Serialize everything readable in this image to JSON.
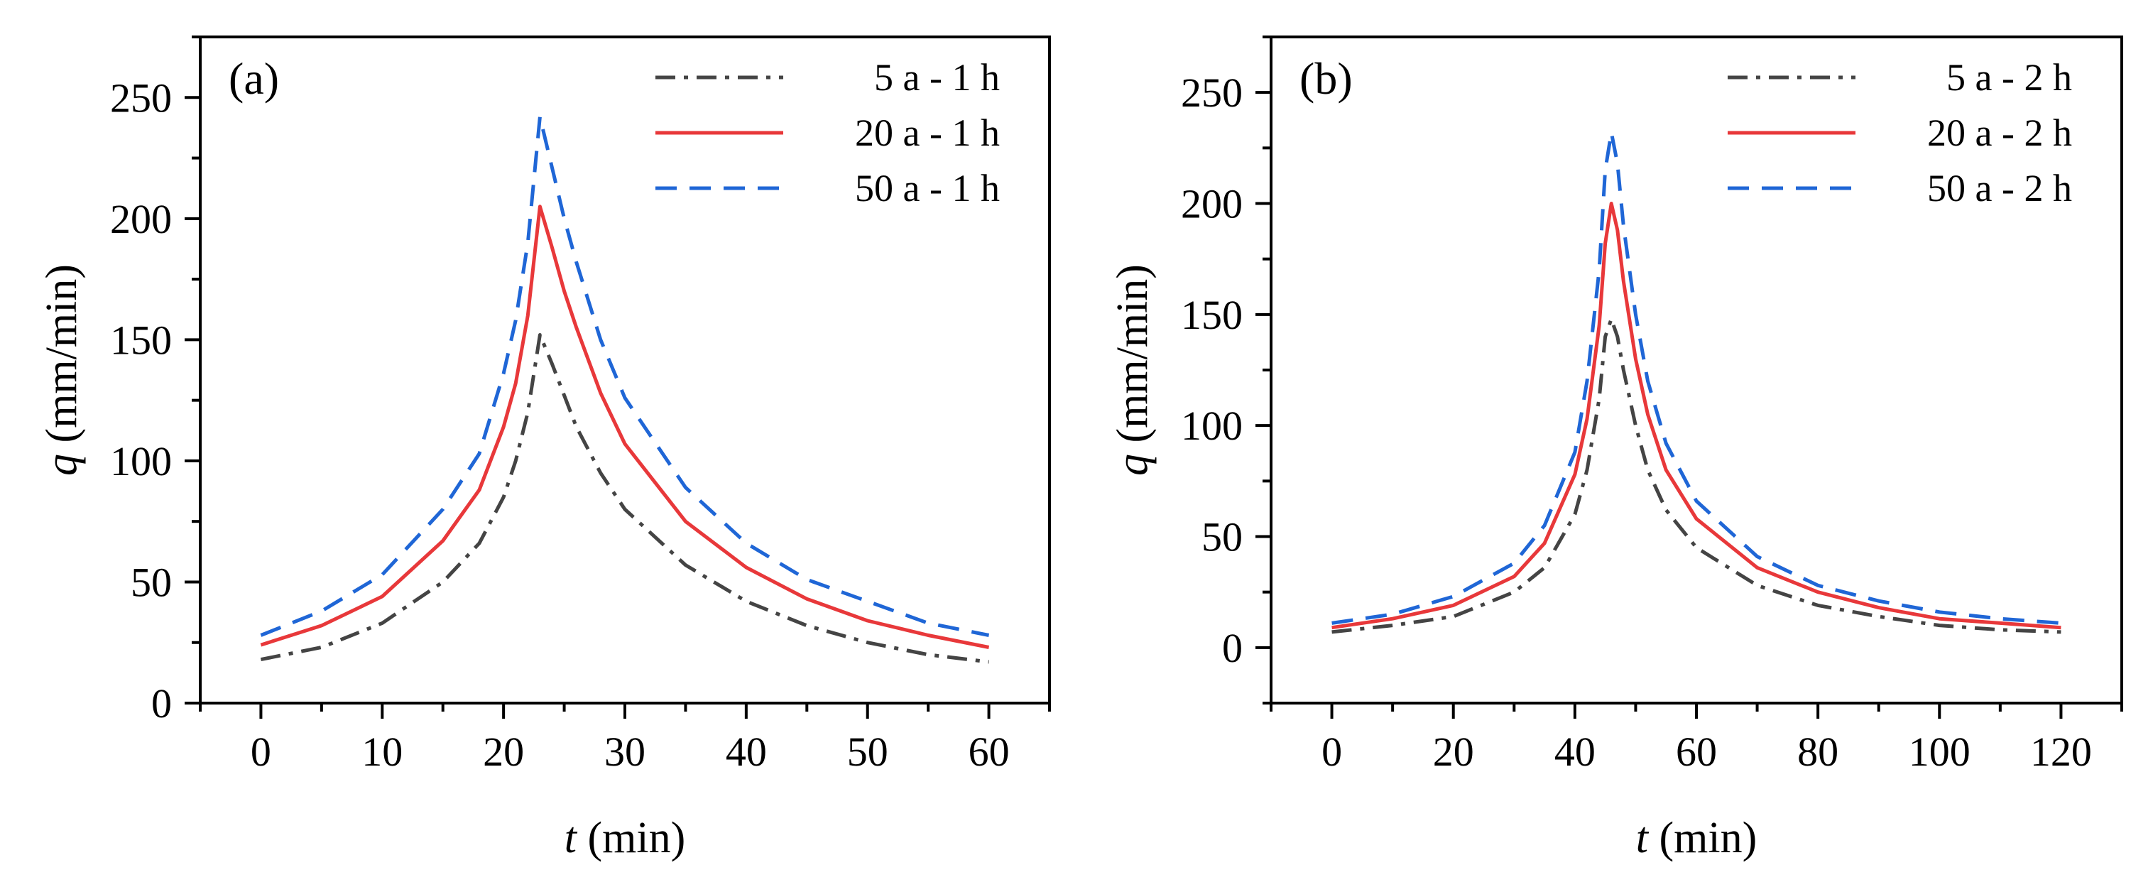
{
  "figure": {
    "background": "#ffffff"
  },
  "chart_data": [
    {
      "type": "line",
      "panel_label": "(a)",
      "xlabel_var": "t",
      "xlabel_unit": " (min)",
      "ylabel_var": "q",
      "ylabel_unit": " (mm/min)",
      "xlim": [
        -5,
        65
      ],
      "ylim": [
        0,
        275
      ],
      "xticks": [
        0,
        10,
        20,
        30,
        40,
        50,
        60
      ],
      "yticks": [
        0,
        50,
        100,
        150,
        200,
        250
      ],
      "legend_position": "top-right",
      "series": [
        {
          "name": "5 a - 1 h",
          "color": "#444444",
          "style": "dashdot",
          "x": [
            0,
            5,
            10,
            15,
            18,
            20,
            21,
            22,
            23,
            24,
            25,
            26,
            28,
            30,
            35,
            40,
            45,
            50,
            55,
            60
          ],
          "y": [
            18,
            23,
            33,
            50,
            66,
            85,
            100,
            120,
            152,
            140,
            127,
            114,
            95,
            80,
            57,
            42,
            32,
            25,
            20,
            17
          ]
        },
        {
          "name": "20 a - 1 h",
          "color": "#e8383a",
          "style": "solid",
          "x": [
            0,
            5,
            10,
            15,
            18,
            20,
            21,
            22,
            23,
            24,
            25,
            26,
            28,
            30,
            35,
            40,
            45,
            50,
            55,
            60
          ],
          "y": [
            24,
            32,
            44,
            67,
            88,
            114,
            132,
            160,
            205,
            188,
            170,
            155,
            128,
            107,
            75,
            56,
            43,
            34,
            28,
            23
          ]
        },
        {
          "name": "50 a - 1 h",
          "color": "#1f66d6",
          "style": "dashed",
          "x": [
            0,
            5,
            10,
            15,
            18,
            20,
            21,
            22,
            23,
            24,
            25,
            26,
            28,
            30,
            35,
            40,
            45,
            50,
            55,
            60
          ],
          "y": [
            28,
            38,
            53,
            80,
            103,
            136,
            158,
            190,
            242,
            221,
            200,
            182,
            150,
            126,
            89,
            66,
            51,
            42,
            33,
            28
          ]
        }
      ]
    },
    {
      "type": "line",
      "panel_label": "(b)",
      "xlabel_var": "t",
      "xlabel_unit": " (min)",
      "ylabel_var": "q",
      "ylabel_unit": " (mm/min)",
      "xlim": [
        -10,
        130
      ],
      "ylim": [
        -25,
        275
      ],
      "xticks": [
        0,
        20,
        40,
        60,
        80,
        100,
        120
      ],
      "yticks": [
        0,
        50,
        100,
        150,
        200,
        250
      ],
      "legend_position": "top-right",
      "series": [
        {
          "name": "5 a - 2 h",
          "color": "#444444",
          "style": "dashdot",
          "x": [
            0,
            10,
            20,
            30,
            35,
            40,
            42,
            44,
            45,
            46,
            47,
            48,
            50,
            52,
            55,
            60,
            70,
            80,
            90,
            100,
            110,
            120
          ],
          "y": [
            7,
            10,
            14,
            25,
            36,
            60,
            80,
            112,
            140,
            148,
            140,
            125,
            100,
            80,
            62,
            45,
            28,
            19,
            14,
            10,
            8,
            7
          ]
        },
        {
          "name": "20 a - 2 h",
          "color": "#e8383a",
          "style": "solid",
          "x": [
            0,
            10,
            20,
            30,
            35,
            40,
            42,
            44,
            45,
            46,
            47,
            48,
            50,
            52,
            55,
            60,
            70,
            80,
            90,
            100,
            110,
            120
          ],
          "y": [
            9,
            13,
            19,
            32,
            47,
            78,
            103,
            145,
            182,
            200,
            188,
            165,
            130,
            105,
            80,
            58,
            36,
            25,
            18,
            13,
            11,
            9
          ]
        },
        {
          "name": "50 a - 2 h",
          "color": "#1f66d6",
          "style": "dashed",
          "x": [
            0,
            10,
            20,
            30,
            35,
            40,
            42,
            44,
            45,
            46,
            47,
            48,
            50,
            52,
            55,
            60,
            70,
            80,
            90,
            100,
            110,
            120
          ],
          "y": [
            11,
            15,
            23,
            38,
            55,
            88,
            120,
            170,
            215,
            232,
            218,
            190,
            150,
            120,
            92,
            66,
            41,
            28,
            21,
            16,
            13,
            11
          ]
        }
      ]
    }
  ]
}
